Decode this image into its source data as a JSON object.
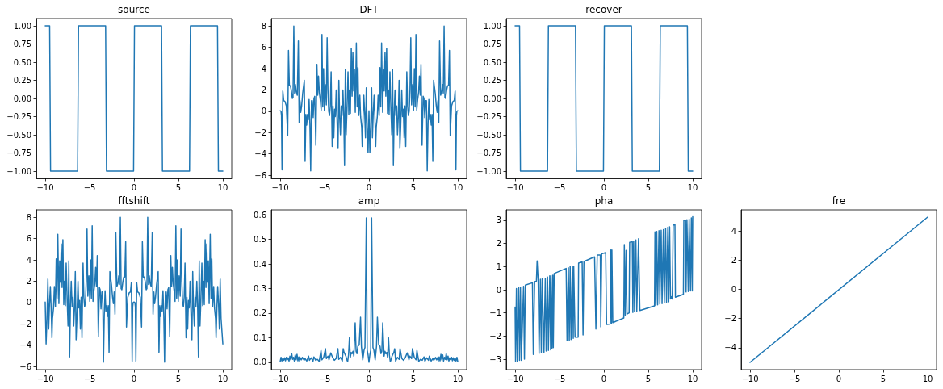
{
  "chart_data": [
    {
      "type": "line",
      "title": "source",
      "color": "#1f77b4",
      "xlim": [
        -11,
        11
      ],
      "ylim": [
        -1.1,
        1.1
      ],
      "xticks": [
        -10,
        -5,
        0,
        5,
        10
      ],
      "yticks": [
        {
          "value": -1,
          "label": "−1.00"
        },
        -0.75,
        {
          "value": -0.5,
          "label": "−0.50"
        },
        -0.25,
        {
          "value": 0,
          "label": "0.00"
        },
        0.25,
        {
          "value": 0.5,
          "label": "0.50"
        },
        0.75,
        {
          "value": 1,
          "label": "1.00"
        }
      ],
      "x": [
        -10,
        -9.5,
        -9.4,
        -6.35,
        -6.25,
        -3.2,
        -3.1,
        -0.05,
        0.05,
        3.1,
        3.2,
        6.25,
        6.35,
        9.4,
        9.5,
        10
      ],
      "values": [
        1,
        1,
        -1,
        -1,
        1,
        1,
        -1,
        -1,
        1,
        1,
        -1,
        -1,
        1,
        1,
        -1,
        -1
      ]
    },
    {
      "type": "line",
      "title": "DFT",
      "color": "#1f77b4",
      "xlim": [
        -11,
        11
      ],
      "ylim": [
        -6.3,
        8.7
      ],
      "xticks": [
        -10,
        -5,
        0,
        5,
        10
      ],
      "yticks": [
        -6,
        -4,
        -2,
        0,
        2,
        4,
        6,
        8
      ],
      "x": [
        -10,
        -9.9,
        -9.85,
        -9.79,
        -9.7,
        -9.6,
        -9.45,
        -9.3,
        -9.15,
        -9.06,
        -8.96,
        -8.85,
        -8.75,
        -8.63,
        -8.55,
        -8.46,
        -8.37,
        -8.28,
        -8.19,
        -8.07,
        -7.95,
        -7.86,
        -7.77,
        -7.68,
        -7.58,
        -7.46,
        -7.28,
        -7.19,
        -7.1,
        -7.01,
        -6.92,
        -6.83,
        -6.74,
        -6.65,
        -6.56,
        -6.47,
        -6.38,
        -6.28,
        -6.19,
        -6.1,
        -5.98,
        -5.86,
        -5.77,
        -5.68,
        -5.59,
        -5.47,
        -5.38,
        -5.29,
        -5.2,
        -5.11,
        -5.02,
        -4.92,
        -4.8,
        -4.71,
        -4.62,
        -4.53,
        -4.44,
        -4.35,
        -4.26,
        -4.14,
        -4.05,
        -3.96,
        -3.87,
        -3.78,
        -3.69,
        -3.57,
        -3.48,
        -3.39,
        -3.3,
        -3.21,
        -3.12,
        -3.03,
        -2.93,
        -2.84,
        -2.75,
        -2.66,
        -2.57,
        -2.48,
        -2.36,
        -2.27,
        -2.18,
        -2.09,
        -1.99,
        -1.9,
        -1.81,
        -1.72,
        -1.63,
        -1.54,
        -1.42,
        -1.33,
        -1.24,
        -1.15,
        -1.03,
        -0.94,
        -0.82,
        -0.76,
        -0.67,
        -0.58,
        -0.48,
        -0.39,
        -0.3,
        -0.2,
        -0.1,
        0,
        0.1,
        0.2,
        0.3,
        0.39,
        0.48,
        0.58,
        0.67,
        0.76,
        0.82,
        0.94,
        1.03,
        1.15,
        1.24,
        1.33,
        1.42,
        1.54,
        1.63,
        1.72,
        1.81,
        1.9,
        1.99,
        2.09,
        2.18,
        2.27,
        2.36,
        2.48,
        2.57,
        2.66,
        2.75,
        2.84,
        2.93,
        3.03,
        3.12,
        3.21,
        3.3,
        3.39,
        3.48,
        3.57,
        3.69,
        3.78,
        3.87,
        3.96,
        4.05,
        4.14,
        4.26,
        4.35,
        4.44,
        4.53,
        4.62,
        4.71,
        4.8,
        4.92,
        5.02,
        5.11,
        5.2,
        5.29,
        5.38,
        5.47,
        5.59,
        5.68,
        5.77,
        5.86,
        5.98,
        6.1,
        6.19,
        6.28,
        6.38,
        6.47,
        6.56,
        6.65,
        6.74,
        6.83,
        6.92,
        7.01,
        7.1,
        7.19,
        7.28,
        7.46,
        7.58,
        7.68,
        7.77,
        7.86,
        7.95,
        8.07,
        8.19,
        8.28,
        8.37,
        8.46,
        8.55,
        8.63,
        8.75,
        8.85,
        8.96,
        9.06,
        9.15,
        9.3,
        9.45,
        9.6,
        9.7,
        9.79,
        9.85,
        9.9,
        10
      ],
      "values": [
        0.05,
        0,
        -0.4,
        -5.5,
        1.9,
        1,
        0.9,
        0.5,
        -2.3,
        5.7,
        2.4,
        2.4,
        2,
        1.2,
        1.3,
        8,
        1.7,
        2.5,
        1.8,
        1.5,
        6.6,
        -1.1,
        1,
        -0.1,
        0.5,
        1.7,
        2.9,
        -4.7,
        -0.3,
        -1.3,
        -0.3,
        -0.8,
        1.1,
        -1.2,
        -5.6,
        1,
        1,
        -0.6,
        1.2,
        1.4,
        -3.2,
        4.4,
        1.5,
        3.3,
        1.8,
        1,
        0.1,
        7.2,
        0.4,
        4,
        0.1,
        2.5,
        0.6,
        6.9,
        2,
        0,
        -0.4,
        0.5,
        3.7,
        -3.3,
        0.5,
        -2.5,
        0.2,
        -0.5,
        2,
        -1.5,
        -3.5,
        2.9,
        -0.6,
        -2.2,
        0.5,
        -0.4,
        2,
        -0.3,
        -5.1,
        3.9,
        -2.2,
        0,
        3.7,
        -0.3,
        2,
        -0.2,
        5.9,
        1.4,
        5.5,
        1.9,
        3.9,
        -0.1,
        6.4,
        0.4,
        4.1,
        -0.4,
        1.5,
        -0.5,
        -1.5,
        -3.3,
        -0.6,
        1.5,
        -0.2,
        -2.5,
        2.2,
        -1.5,
        -3.9,
        0.05,
        -3.9,
        -1.5,
        2.2,
        -2.5,
        -0.2,
        1.5,
        -0.6,
        -3.3,
        -1.5,
        -0.5,
        1.5,
        -0.4,
        4.1,
        0.4,
        6.4,
        -0.1,
        3.9,
        1.9,
        5.5,
        1.4,
        5.9,
        -0.2,
        2,
        -0.3,
        3.7,
        0,
        -2.2,
        3.9,
        -5.1,
        -0.3,
        2,
        -0.4,
        0.5,
        -2.2,
        -0.6,
        2.9,
        -3.5,
        -1.5,
        2,
        -0.5,
        0.2,
        -2.5,
        0.5,
        -3.3,
        3.7,
        0.5,
        -0.4,
        0,
        2,
        6.9,
        0.6,
        2.5,
        0.1,
        4,
        0.4,
        7.2,
        0.1,
        1,
        1.8,
        3.3,
        1.5,
        4.4,
        -3.2,
        1.4,
        1.2,
        -0.6,
        1,
        1,
        -5.6,
        -1.2,
        1.1,
        -0.8,
        -0.3,
        -1.3,
        -0.3,
        -4.7,
        2.9,
        1.7,
        0.5,
        -0.1,
        1,
        -1.1,
        6.6,
        1.5,
        1.8,
        2.5,
        1.7,
        8,
        1.3,
        1.2,
        2,
        2.4,
        2.4,
        5.7,
        -2.3,
        0.5,
        0.9,
        1,
        1.9,
        -5.5,
        -0.4,
        0,
        0.05
      ]
    },
    {
      "type": "line",
      "title": "recover",
      "color": "#1f77b4",
      "xlim": [
        -11,
        11
      ],
      "ylim": [
        -1.1,
        1.1
      ],
      "xticks": [
        -10,
        -5,
        0,
        5,
        10
      ],
      "yticks": [
        {
          "value": -1,
          "label": "−1.00"
        },
        -0.75,
        {
          "value": -0.5,
          "label": "−0.50"
        },
        -0.25,
        {
          "value": 0,
          "label": "0.00"
        },
        0.25,
        {
          "value": 0.5,
          "label": "0.50"
        },
        0.75,
        {
          "value": 1,
          "label": "1.00"
        }
      ],
      "x": [
        -10,
        -9.5,
        -9.4,
        -6.35,
        -6.25,
        -3.2,
        -3.1,
        -0.05,
        0.05,
        3.1,
        3.2,
        6.25,
        6.35,
        9.4,
        9.5,
        10
      ],
      "values": [
        1,
        1,
        -1,
        -1,
        1,
        1,
        -1,
        -1,
        1,
        1,
        -1,
        -1,
        1,
        1,
        -1,
        -1
      ]
    },
    {
      "type": "line",
      "title": "fftshift",
      "color": "#1f77b4",
      "xlim": [
        -11,
        11
      ],
      "ylim": [
        -6.3,
        8.7
      ],
      "xticks": [
        -10,
        -5,
        0,
        5,
        10
      ],
      "yticks": [
        -6,
        -4,
        -2,
        0,
        2,
        4,
        6,
        8
      ],
      "x": [
        -10,
        -9.9,
        -9.8,
        -9.7,
        -9.61,
        -9.52,
        -9.42,
        -9.33,
        -9.24,
        -9.18,
        -9.06,
        -8.97,
        -8.85,
        -8.76,
        -8.67,
        -8.58,
        -8.46,
        -8.37,
        -8.28,
        -8.19,
        -8.1,
        -8.01,
        -7.91,
        -7.82,
        -7.73,
        -7.64,
        -7.52,
        -7.43,
        -7.34,
        -7.25,
        -7.16,
        -7.07,
        -6.97,
        -6.88,
        -6.79,
        -6.7,
        -6.61,
        -6.52,
        -6.43,
        -6.31,
        -6.22,
        -6.13,
        -6.04,
        -5.95,
        -5.86,
        -5.74,
        -5.65,
        -5.56,
        -5.47,
        -5.38,
        -5.29,
        -5.2,
        -5.08,
        -4.98,
        -4.89,
        -4.8,
        -4.71,
        -4.62,
        -4.53,
        -4.41,
        -4.32,
        -4.23,
        -4.14,
        -4.02,
        -3.9,
        -3.81,
        -3.72,
        -3.62,
        -3.53,
        -3.44,
        -3.35,
        -3.26,
        -3.17,
        -3.08,
        -2.99,
        -2.9,
        -2.81,
        -2.72,
        -2.54,
        -2.42,
        -2.32,
        -2.23,
        -2.14,
        -2.05,
        -1.93,
        -1.81,
        -1.72,
        -1.63,
        -1.54,
        -1.45,
        -1.37,
        -1.25,
        -1.15,
        -1.04,
        -0.94,
        -0.85,
        -0.7,
        -0.55,
        -0.4,
        -0.3,
        -0.21,
        -0.15,
        -0.1,
        0,
        0.1,
        0.15,
        0.21,
        0.3,
        0.4,
        0.55,
        0.7,
        0.85,
        0.94,
        1.04,
        1.15,
        1.25,
        1.37,
        1.45,
        1.54,
        1.63,
        1.72,
        1.81,
        1.93,
        2.05,
        2.14,
        2.23,
        2.32,
        2.42,
        2.54,
        2.72,
        2.81,
        2.9,
        2.99,
        3.08,
        3.17,
        3.26,
        3.35,
        3.44,
        3.53,
        3.62,
        3.72,
        3.81,
        3.9,
        4.02,
        4.14,
        4.23,
        4.32,
        4.41,
        4.53,
        4.62,
        4.71,
        4.8,
        4.89,
        4.98,
        5.08,
        5.2,
        5.29,
        5.38,
        5.47,
        5.56,
        5.65,
        5.74,
        5.86,
        5.95,
        6.04,
        6.13,
        6.22,
        6.31,
        6.43,
        6.52,
        6.61,
        6.7,
        6.79,
        6.88,
        6.97,
        7.07,
        7.16,
        7.25,
        7.34,
        7.43,
        7.52,
        7.64,
        7.73,
        7.82,
        7.91,
        8.01,
        8.1,
        8.19,
        8.28,
        8.37,
        8.46,
        8.58,
        8.67,
        8.76,
        8.85,
        8.97,
        9.06,
        9.18,
        9.24,
        9.33,
        9.42,
        9.52,
        9.61,
        9.7,
        9.8,
        10
      ],
      "values": [
        0.05,
        -3.9,
        -1.5,
        2.2,
        -2.5,
        -0.2,
        1.5,
        -0.6,
        -3.3,
        -1.5,
        -0.5,
        1.5,
        -0.4,
        4.1,
        0.4,
        6.4,
        -0.1,
        3.9,
        1.9,
        5.5,
        1.4,
        5.9,
        -0.2,
        2,
        -0.3,
        3.7,
        0,
        -2.2,
        3.9,
        -5.1,
        -0.3,
        2,
        -0.4,
        0.5,
        -2.2,
        -0.6,
        2.9,
        -3.5,
        -1.5,
        2,
        -0.5,
        0.2,
        -2.5,
        0.5,
        -3.3,
        3.7,
        0.5,
        -0.4,
        0,
        2,
        6.9,
        0.6,
        2.5,
        0.1,
        4,
        0.4,
        7.2,
        0.1,
        1,
        1.8,
        3.3,
        1.5,
        4.4,
        -3.2,
        1.4,
        1.2,
        -0.6,
        1,
        1,
        -5.6,
        -1.2,
        1.1,
        -0.8,
        -0.3,
        -1.3,
        -0.3,
        -4.7,
        2.9,
        1.7,
        0.5,
        -0.1,
        1,
        -1.1,
        6.6,
        1.5,
        1.8,
        2.5,
        1.7,
        8,
        1.3,
        1.2,
        2,
        2.4,
        2.4,
        5.7,
        -2.3,
        0.5,
        0.9,
        1,
        1.9,
        -5.5,
        -0.4,
        0,
        0.05,
        0,
        -0.4,
        -5.5,
        1.9,
        1,
        0.9,
        0.5,
        -2.3,
        5.7,
        2.4,
        2.4,
        2,
        1.2,
        1.3,
        8,
        1.7,
        2.5,
        1.8,
        1.5,
        6.6,
        -1.1,
        1,
        -0.1,
        0.5,
        1.7,
        2.9,
        -4.7,
        -0.3,
        -1.3,
        -0.3,
        -0.8,
        1.1,
        -1.2,
        -5.6,
        1,
        1,
        -0.6,
        1.2,
        1.4,
        -3.2,
        4.4,
        1.5,
        3.3,
        1.8,
        1,
        0.1,
        7.2,
        0.4,
        4,
        0.1,
        2.5,
        0.6,
        6.9,
        2,
        0,
        -0.4,
        0.5,
        3.7,
        -3.3,
        0.5,
        -2.5,
        0.2,
        -0.5,
        2,
        -1.5,
        -3.5,
        2.9,
        -0.6,
        -2.2,
        0.5,
        -0.4,
        2,
        -0.3,
        -5.1,
        3.9,
        -2.2,
        0,
        3.7,
        -0.3,
        2,
        -0.2,
        5.9,
        1.4,
        5.5,
        1.9,
        3.9,
        -0.1,
        6.4,
        0.4,
        4.1,
        -0.4,
        1.5,
        -0.5,
        -1.5,
        -3.3,
        -0.6,
        1.5,
        -0.2,
        -2.5,
        2.2,
        -1.5,
        -3.9
      ]
    },
    {
      "type": "line",
      "title": "amp",
      "color": "#1f77b4",
      "xlim": [
        -11,
        11
      ],
      "ylim": [
        -0.03,
        0.62
      ],
      "xticks": [
        -10,
        -5,
        0,
        5,
        10
      ],
      "yticks": [
        {
          "value": 0,
          "label": "0.0"
        },
        0.1,
        0.2,
        0.3,
        0.4,
        0.5,
        0.6
      ],
      "x": [
        -10,
        -9.9,
        -9.8,
        -9.7,
        -9.6,
        -9.5,
        -9.4,
        -9.3,
        -9.2,
        -9.1,
        -9,
        -8.9,
        -8.8,
        -8.7,
        -8.6,
        -8.5,
        -8.4,
        -8.3,
        -8.2,
        -8.1,
        -8,
        -7.9,
        -7.8,
        -7.7,
        -7.6,
        -7.5,
        -7.3,
        -7.2,
        -7,
        -6.8,
        -6.7,
        -6.5,
        -6.3,
        -6.2,
        -6,
        -5.8,
        -5.6,
        -5.4,
        -5.3,
        -5.1,
        -4.9,
        -4.8,
        -4.6,
        -4.5,
        -4.3,
        -4.1,
        -3.9,
        -3.7,
        -3.5,
        -3.4,
        -3.2,
        -3,
        -2.9,
        -2.8,
        -2.6,
        -2.5,
        -2.4,
        -2.3,
        -2.2,
        -2.1,
        -2,
        -1.9,
        -1.8,
        -1.7,
        -1.55,
        -1.45,
        -1.35,
        -1.25,
        -1.1,
        -0.95,
        -0.85,
        -0.7,
        -0.55,
        -0.45,
        -0.3,
        -0.2,
        -0.1,
        0,
        0.1,
        0.2,
        0.3,
        0.45,
        0.55,
        0.7,
        0.85,
        0.95,
        1.1,
        1.25,
        1.35,
        1.45,
        1.55,
        1.7,
        1.8,
        1.9,
        2,
        2.1,
        2.2,
        2.3,
        2.4,
        2.5,
        2.6,
        2.8,
        2.9,
        3,
        3.2,
        3.4,
        3.5,
        3.7,
        3.9,
        4.1,
        4.3,
        4.5,
        4.6,
        4.8,
        4.9,
        5.1,
        5.3,
        5.4,
        5.6,
        5.8,
        6,
        6.2,
        6.3,
        6.5,
        6.7,
        6.8,
        7,
        7.2,
        7.3,
        7.5,
        7.6,
        7.7,
        7.8,
        7.9,
        8,
        8.1,
        8.2,
        8.3,
        8.4,
        8.5,
        8.6,
        8.7,
        8.8,
        8.9,
        9,
        9.1,
        9.2,
        9.3,
        9.4,
        9.5,
        9.6,
        9.7,
        9.8,
        9.9,
        10
      ],
      "values": [
        0.002,
        0.02,
        0.005,
        0.015,
        0.008,
        0.018,
        0.006,
        0.02,
        0.01,
        0.018,
        0.005,
        0.025,
        0.01,
        0.035,
        0.012,
        0.02,
        0.005,
        0.03,
        0.01,
        0.032,
        0.006,
        0.022,
        0.004,
        0.018,
        0.01,
        0.02,
        0.008,
        0.015,
        0.005,
        0.025,
        0.008,
        0.018,
        0.004,
        0.022,
        0.008,
        0.012,
        0.004,
        0.048,
        0.01,
        0.02,
        0.055,
        0.015,
        0.025,
        0.01,
        0.038,
        0.02,
        0.008,
        0.015,
        0.055,
        0.012,
        0.02,
        0.005,
        0.055,
        0.04,
        0.025,
        0.012,
        0.002,
        0.03,
        0.1,
        0.02,
        0.04,
        0.035,
        0.045,
        0.025,
        0.16,
        0.045,
        0.035,
        0.065,
        0.07,
        0.183,
        0.065,
        0.01,
        0.05,
        0.06,
        0.587,
        0.05,
        0.03,
        0,
        0.03,
        0.05,
        0.587,
        0.06,
        0.05,
        0.01,
        0.065,
        0.183,
        0.07,
        0.065,
        0.035,
        0.045,
        0.16,
        0.025,
        0.045,
        0.035,
        0.04,
        0.02,
        0.1,
        0.03,
        0.002,
        0.012,
        0.025,
        0.04,
        0.055,
        0.005,
        0.02,
        0.012,
        0.055,
        0.015,
        0.008,
        0.02,
        0.038,
        0.01,
        0.025,
        0.015,
        0.055,
        0.02,
        0.01,
        0.048,
        0.004,
        0.012,
        0.008,
        0.022,
        0.004,
        0.018,
        0.008,
        0.025,
        0.005,
        0.015,
        0.008,
        0.02,
        0.01,
        0.018,
        0.004,
        0.022,
        0.006,
        0.032,
        0.01,
        0.03,
        0.005,
        0.02,
        0.012,
        0.035,
        0.01,
        0.025,
        0.005,
        0.018,
        0.01,
        0.02,
        0.006,
        0.018,
        0.008,
        0.015,
        0.005,
        0.02,
        0.002
      ]
    },
    {
      "type": "line",
      "title": "pha",
      "color": "#1f77b4",
      "xlim": [
        -11,
        11
      ],
      "ylim": [
        -3.45,
        3.45
      ],
      "xticks": [
        -10,
        -5,
        0,
        5,
        10
      ],
      "yticks": [
        -3,
        -2,
        -1,
        0,
        1,
        2,
        3
      ],
      "x": [
        -10,
        -9.95,
        -9.85,
        -9.75,
        -9.6,
        -9.5,
        -9.4,
        -9.3,
        -9.05,
        -8.95,
        -8.85,
        -8.05,
        -7.95,
        -7.8,
        -7.6,
        -7.52,
        -7.4,
        -7.3,
        -7.15,
        -7.05,
        -6.95,
        -6.75,
        -6.6,
        -6.5,
        -6.35,
        -6.25,
        -6.1,
        -6,
        -5.95,
        -5.85,
        -5.75,
        -5.7,
        -5.6,
        -4.25,
        -4.15,
        -4,
        -3.9,
        -3.8,
        -3.7,
        -3.55,
        -3.45,
        -3.4,
        -3.25,
        -2.9,
        -2.85,
        -2.45,
        -2.35,
        -2.25,
        -1.05,
        -0.9,
        -0.75,
        -0.4,
        -0.35,
        -0.25,
        0.2,
        0.3,
        0.7,
        0.78,
        0.85,
        0.9,
        1,
        2.24,
        2.3,
        2.4,
        2.5,
        2.6,
        2.84,
        2.9,
        3.2,
        3.26,
        3.35,
        3.45,
        3.6,
        3.7,
        3.9,
        4.05,
        5.7,
        5.75,
        5.85,
        5.95,
        6.05,
        6.2,
        6.3,
        6.45,
        6.55,
        6.7,
        6.8,
        6.95,
        7.05,
        7.2,
        7.3,
        7.4,
        7.5,
        7.6,
        7.7,
        7.8,
        8,
        8.05,
        8.95,
        9,
        9.2,
        9.25,
        9.35,
        9.5,
        9.6,
        9.75,
        9.85,
        9.95,
        10
      ],
      "values": [
        -0.75,
        -3.1,
        0.05,
        -3.1,
        0.1,
        -3.05,
        0.1,
        -3.05,
        0.15,
        -3,
        0.2,
        0.3,
        -2.8,
        0.35,
        0.37,
        1.25,
        0.4,
        -2.75,
        0.45,
        -2.7,
        0.5,
        -2.7,
        0.5,
        -2.65,
        0.55,
        -2.62,
        0.6,
        -2.6,
        0.62,
        -2.55,
        0.63,
        -2.5,
        0.7,
        0.92,
        -2.2,
        0.95,
        -2.2,
        1,
        -2.15,
        1,
        -2.1,
        1.02,
        -2.05,
        -2.05,
        1.15,
        1.2,
        -1.95,
        1.22,
        1.42,
        -1.7,
        1.5,
        1.5,
        -1.6,
        1.55,
        1.6,
        -1.5,
        -1.48,
        1.72,
        -1.45,
        1.72,
        -1.42,
        -1.22,
        1.95,
        -1.1,
        1.7,
        -1.05,
        -1,
        2.05,
        2.07,
        -0.98,
        2.1,
        -0.95,
        2.15,
        -0.95,
        2.2,
        -0.9,
        -0.7,
        2.5,
        -0.68,
        2.52,
        -0.65,
        2.55,
        -0.62,
        2.57,
        -0.6,
        2.6,
        -0.57,
        2.65,
        -0.55,
        2.7,
        -0.52,
        2.72,
        -0.4,
        -0.3,
        -0.4,
        2.8,
        2.82,
        -0.32,
        -0.2,
        3,
        3,
        -0.1,
        3.02,
        -0.08,
        3.05,
        -0.05,
        3.1,
        -0.05,
        3.15
      ]
    },
    {
      "type": "line",
      "title": "fre",
      "color": "#1f77b4",
      "xlim": [
        -11,
        11
      ],
      "ylim": [
        -5.5,
        5.45
      ],
      "xticks": [
        -10,
        -5,
        0,
        5,
        10
      ],
      "yticks": [
        -4,
        -2,
        0,
        2,
        4
      ],
      "x": [
        -10,
        10
      ],
      "values": [
        -5,
        4.95
      ]
    }
  ]
}
